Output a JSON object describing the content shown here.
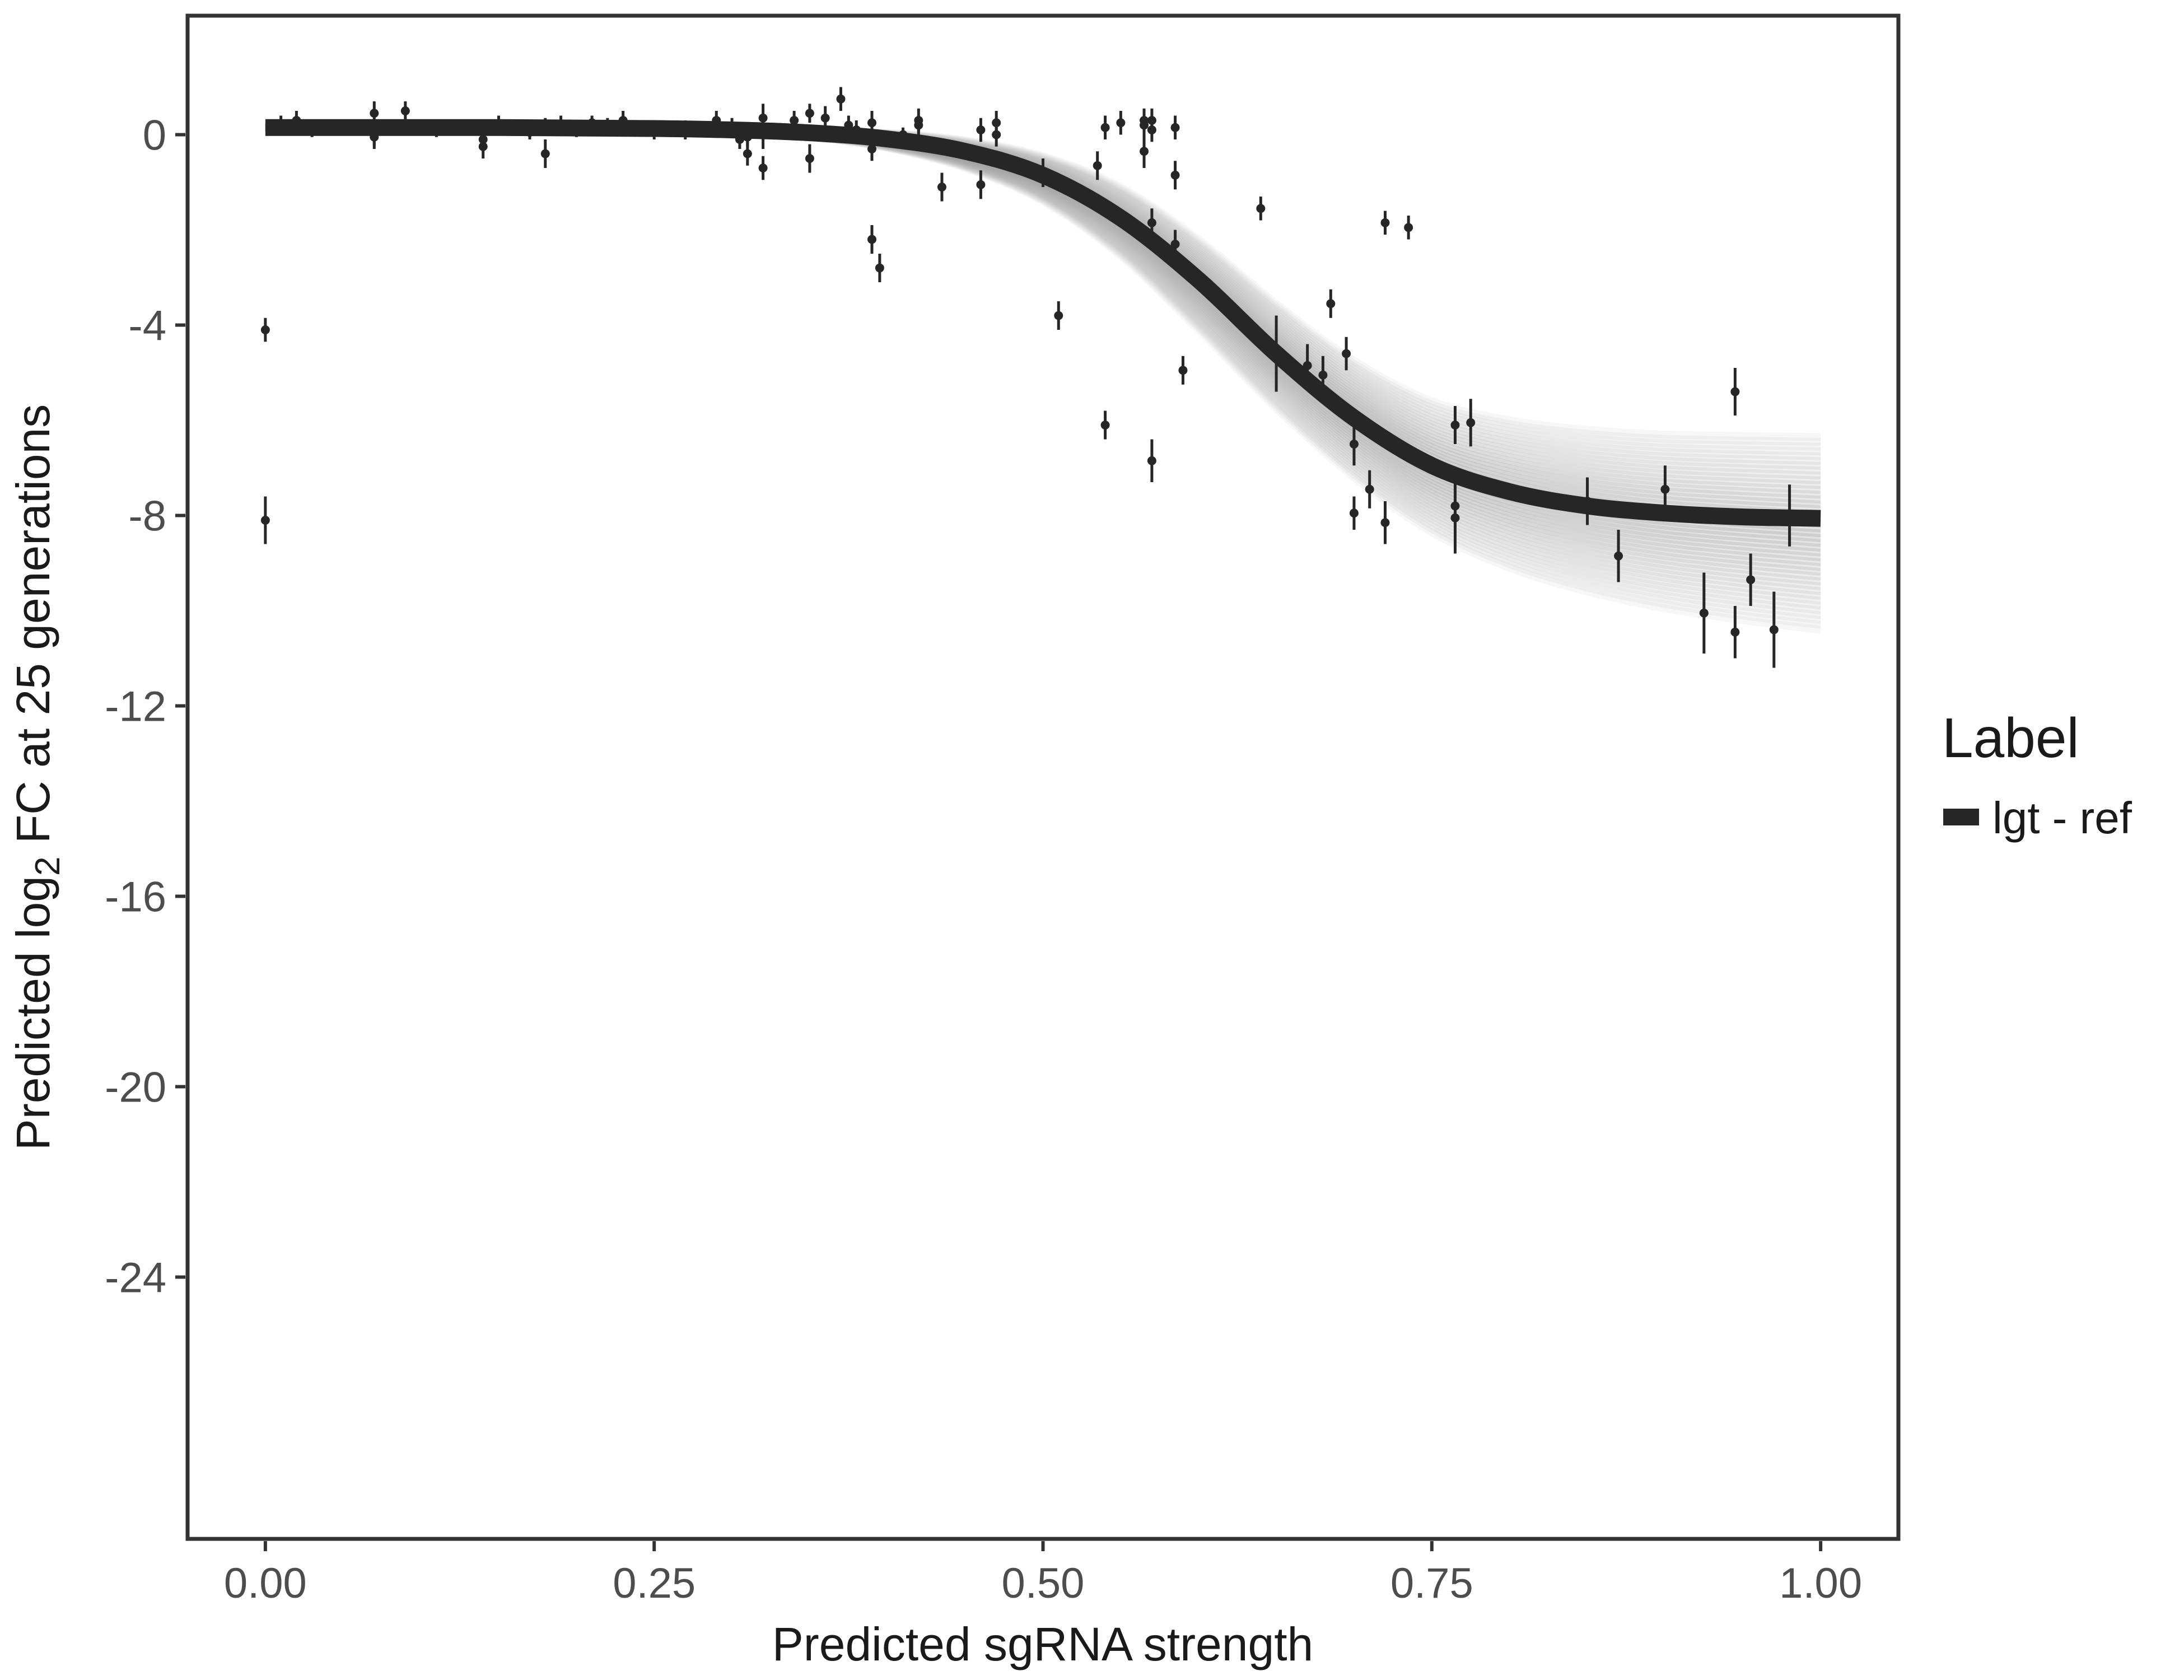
{
  "chart_data": {
    "type": "scatter",
    "xlabel": "Predicted sgRNA strength",
    "ylabel": {
      "prefix": "Predicted  log",
      "subscript": "2",
      "suffix": " FC at 25 generations"
    },
    "xlim": [
      -0.05,
      1.05
    ],
    "ylim": [
      -29.5,
      2.5
    ],
    "x_ticks": [
      {
        "value": 0.0,
        "label": "0.00"
      },
      {
        "value": 0.25,
        "label": "0.25"
      },
      {
        "value": 0.5,
        "label": "0.50"
      },
      {
        "value": 0.75,
        "label": "0.75"
      },
      {
        "value": 1.0,
        "label": "1.00"
      }
    ],
    "y_ticks": [
      {
        "value": 0,
        "label": "0"
      },
      {
        "value": -4,
        "label": "-4"
      },
      {
        "value": -8,
        "label": "-8"
      },
      {
        "value": -12,
        "label": "-12"
      },
      {
        "value": -16,
        "label": "-16"
      },
      {
        "value": -20,
        "label": "-20"
      },
      {
        "value": -24,
        "label": "-24"
      }
    ],
    "grid": false,
    "legend": {
      "title": "Label",
      "position": "right",
      "entries": [
        {
          "label": "lgt - ref",
          "color": "#262626"
        }
      ]
    },
    "fit_curve": {
      "color": "#262626",
      "band_color": "#9e9e9e",
      "x": [
        0.0,
        0.05,
        0.1,
        0.15,
        0.2,
        0.25,
        0.3,
        0.35,
        0.4,
        0.45,
        0.5,
        0.55,
        0.6,
        0.65,
        0.7,
        0.75,
        0.8,
        0.85,
        0.9,
        0.95,
        1.0
      ],
      "y": [
        0.15,
        0.15,
        0.15,
        0.15,
        0.14,
        0.13,
        0.1,
        0.04,
        -0.09,
        -0.35,
        -0.85,
        -1.75,
        -3.05,
        -4.6,
        -5.95,
        -6.95,
        -7.5,
        -7.8,
        -7.95,
        -8.03,
        -8.06
      ],
      "band_upper": [
        0.15,
        0.15,
        0.15,
        0.15,
        0.15,
        0.14,
        0.13,
        0.1,
        0.04,
        -0.12,
        -0.45,
        -1.1,
        -2.2,
        -3.55,
        -4.75,
        -5.6,
        -6.0,
        -6.2,
        -6.3,
        -6.33,
        -6.35
      ],
      "band_lower": [
        0.15,
        0.15,
        0.15,
        0.15,
        0.13,
        0.11,
        0.05,
        -0.05,
        -0.28,
        -0.7,
        -1.4,
        -2.55,
        -4.1,
        -5.75,
        -7.2,
        -8.35,
        -9.1,
        -9.6,
        -9.95,
        -10.2,
        -10.4
      ]
    },
    "points": {
      "color": "#262626",
      "x": [
        0.0,
        0.0,
        0.01,
        0.02,
        0.03,
        0.07,
        0.07,
        0.07,
        0.09,
        0.11,
        0.14,
        0.14,
        0.15,
        0.17,
        0.18,
        0.18,
        0.19,
        0.2,
        0.21,
        0.22,
        0.23,
        0.25,
        0.27,
        0.29,
        0.3,
        0.305,
        0.31,
        0.31,
        0.32,
        0.32,
        0.32,
        0.34,
        0.35,
        0.35,
        0.36,
        0.37,
        0.375,
        0.38,
        0.39,
        0.39,
        0.39,
        0.395,
        0.41,
        0.42,
        0.42,
        0.435,
        0.46,
        0.46,
        0.47,
        0.47,
        0.5,
        0.51,
        0.535,
        0.54,
        0.54,
        0.55,
        0.565,
        0.565,
        0.565,
        0.57,
        0.57,
        0.57,
        0.57,
        0.585,
        0.585,
        0.585,
        0.59,
        0.64,
        0.65,
        0.67,
        0.68,
        0.685,
        0.695,
        0.7,
        0.7,
        0.71,
        0.72,
        0.72,
        0.735,
        0.765,
        0.765,
        0.765,
        0.775,
        0.85,
        0.87,
        0.9,
        0.925,
        0.945,
        0.945,
        0.955,
        0.97,
        0.98
      ],
      "y": [
        -4.1,
        -8.1,
        0.2,
        0.3,
        0.1,
        0.45,
        0.0,
        -0.05,
        0.5,
        0.1,
        -0.25,
        -0.1,
        0.2,
        0.05,
        0.2,
        -0.4,
        0.2,
        0.1,
        0.25,
        0.2,
        0.3,
        0.1,
        0.1,
        0.3,
        0.15,
        -0.1,
        -0.05,
        -0.4,
        0.0,
        -0.7,
        0.35,
        0.3,
        0.45,
        -0.5,
        0.35,
        0.75,
        0.2,
        0.1,
        -2.2,
        -0.3,
        0.25,
        -2.8,
        0.0,
        0.3,
        0.2,
        -1.1,
        -1.05,
        0.1,
        0.25,
        0.0,
        -0.8,
        -3.8,
        -0.65,
        -6.1,
        0.15,
        0.25,
        0.3,
        0.2,
        -0.35,
        -6.85,
        -1.85,
        0.3,
        0.1,
        -2.3,
        -0.85,
        0.15,
        -4.95,
        -1.55,
        -4.6,
        -4.85,
        -5.05,
        -3.55,
        -4.6,
        -6.5,
        -7.95,
        -7.45,
        -1.85,
        -8.15,
        -1.95,
        -6.1,
        -7.8,
        -8.05,
        -6.05,
        -7.7,
        -8.85,
        -7.45,
        -10.05,
        -10.45,
        -5.4,
        -9.35,
        -10.4,
        -8.0
      ],
      "err": [
        0.25,
        0.5,
        0.2,
        0.2,
        0.15,
        0.25,
        0.3,
        0.2,
        0.2,
        0.15,
        0.25,
        0.2,
        0.2,
        0.15,
        0.15,
        0.3,
        0.2,
        0.15,
        0.15,
        0.15,
        0.2,
        0.2,
        0.2,
        0.2,
        0.2,
        0.2,
        0.2,
        0.25,
        0.3,
        0.25,
        0.3,
        0.2,
        0.2,
        0.3,
        0.25,
        0.25,
        0.2,
        0.2,
        0.3,
        0.25,
        0.25,
        0.3,
        0.15,
        0.25,
        0.2,
        0.3,
        0.3,
        0.25,
        0.25,
        0.25,
        0.3,
        0.3,
        0.3,
        0.3,
        0.25,
        0.25,
        0.25,
        0.25,
        0.35,
        0.45,
        0.3,
        0.25,
        0.25,
        0.3,
        0.3,
        0.25,
        0.3,
        0.25,
        0.8,
        0.45,
        0.4,
        0.3,
        0.35,
        0.45,
        0.35,
        0.4,
        0.25,
        0.45,
        0.25,
        0.4,
        0.45,
        0.75,
        0.5,
        0.5,
        0.55,
        0.5,
        0.85,
        0.55,
        0.5,
        0.55,
        0.8,
        0.65
      ]
    }
  }
}
